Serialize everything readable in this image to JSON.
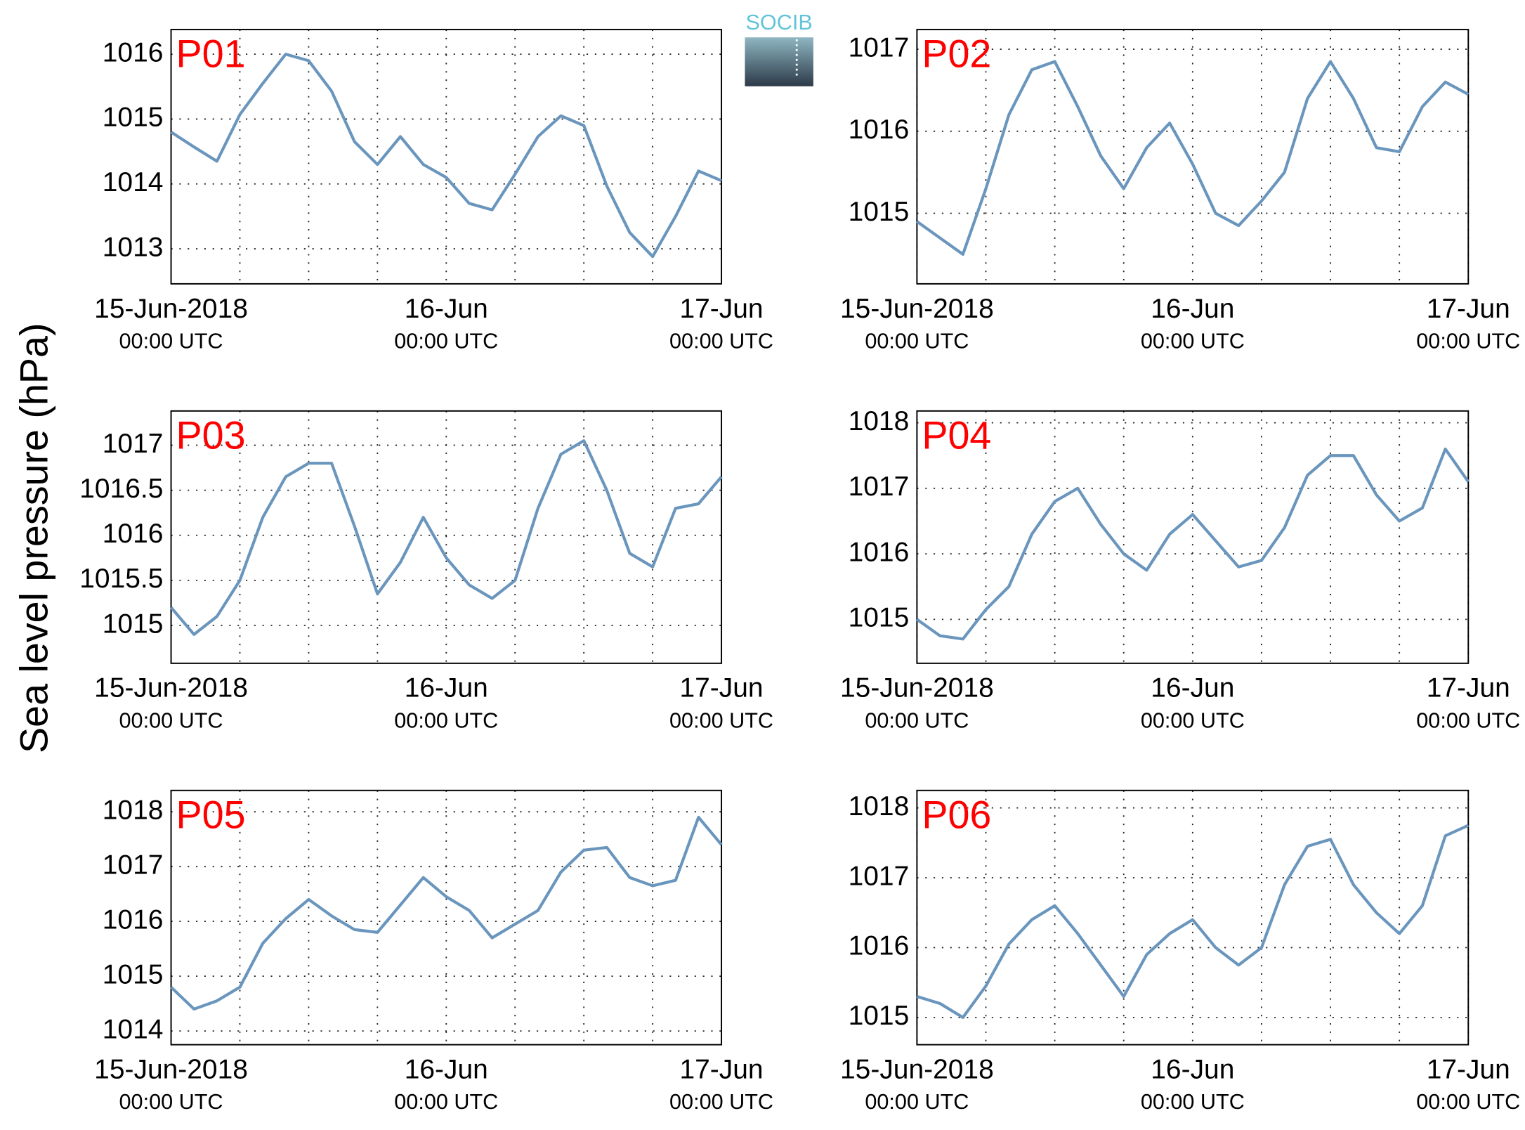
{
  "ylabel": "Sea level pressure (hPa)",
  "logo": "SOCIB",
  "chart_data": [
    {
      "type": "line",
      "label": "P01",
      "color": "#6a96bd",
      "label_color": "#ff0000",
      "grid": true,
      "x": [
        0,
        2,
        4,
        6,
        8,
        10,
        12,
        14,
        16,
        18,
        20,
        22,
        24,
        26,
        28,
        30,
        32,
        34,
        36,
        38,
        40,
        42,
        44,
        46,
        48
      ],
      "values": [
        1014.8,
        1014.57,
        1014.35,
        1015.07,
        1015.55,
        1016.0,
        1015.9,
        1015.43,
        1014.65,
        1014.3,
        1014.73,
        1014.3,
        1014.1,
        1013.7,
        1013.6,
        1014.15,
        1014.73,
        1015.05,
        1014.9,
        1013.97,
        1013.25,
        1012.88,
        1013.5,
        1014.2,
        1014.05
      ],
      "xlim": [
        0,
        48
      ],
      "xticks": [
        {
          "value": 0,
          "label": [
            "15-Jun-2018",
            "00:00 UTC"
          ]
        },
        6,
        12,
        18,
        {
          "value": 24,
          "label": [
            "16-Jun",
            "00:00 UTC"
          ]
        },
        30,
        36,
        42,
        {
          "value": 48,
          "label": [
            "17-Jun",
            "00:00 UTC"
          ]
        }
      ],
      "ylim": [
        1012.46,
        1016.38
      ],
      "yticks": [
        1013,
        1014,
        1015,
        1016
      ]
    },
    {
      "type": "line",
      "label": "P02",
      "color": "#6a96bd",
      "label_color": "#ff0000",
      "grid": true,
      "x": [
        0,
        2,
        4,
        6,
        8,
        10,
        12,
        14,
        16,
        18,
        20,
        22,
        24,
        26,
        28,
        30,
        32,
        34,
        36,
        38,
        40,
        42,
        44,
        46,
        48
      ],
      "values": [
        1014.9,
        1014.7,
        1014.5,
        1015.3,
        1016.2,
        1016.75,
        1016.85,
        1016.3,
        1015.7,
        1015.3,
        1015.8,
        1016.1,
        1015.6,
        1015.0,
        1014.85,
        1015.15,
        1015.5,
        1016.4,
        1016.85,
        1016.4,
        1015.8,
        1015.75,
        1016.3,
        1016.6,
        1016.45
      ],
      "xlim": [
        0,
        48
      ],
      "xticks": [
        {
          "value": 0,
          "label": [
            "15-Jun-2018",
            "00:00 UTC"
          ]
        },
        6,
        12,
        18,
        {
          "value": 24,
          "label": [
            "16-Jun",
            "00:00 UTC"
          ]
        },
        30,
        36,
        42,
        {
          "value": 48,
          "label": [
            "17-Jun",
            "00:00 UTC"
          ]
        }
      ],
      "ylim": [
        1014.14,
        1017.24
      ],
      "yticks": [
        1015,
        1016,
        1017
      ]
    },
    {
      "type": "line",
      "label": "P03",
      "color": "#6a96bd",
      "label_color": "#ff0000",
      "grid": true,
      "x": [
        0,
        2,
        4,
        6,
        8,
        10,
        12,
        14,
        16,
        18,
        20,
        22,
        24,
        26,
        28,
        30,
        32,
        34,
        36,
        38,
        40,
        42,
        44,
        46,
        48
      ],
      "values": [
        1015.2,
        1014.9,
        1015.1,
        1015.5,
        1016.2,
        1016.65,
        1016.8,
        1016.8,
        1016.1,
        1015.35,
        1015.7,
        1016.2,
        1015.75,
        1015.45,
        1015.3,
        1015.5,
        1016.3,
        1016.9,
        1017.05,
        1016.5,
        1015.8,
        1015.65,
        1016.3,
        1016.35,
        1016.65
      ],
      "xlim": [
        0,
        48
      ],
      "xticks": [
        {
          "value": 0,
          "label": [
            "15-Jun-2018",
            "00:00 UTC"
          ]
        },
        6,
        12,
        18,
        {
          "value": 24,
          "label": [
            "16-Jun",
            "00:00 UTC"
          ]
        },
        30,
        36,
        42,
        {
          "value": 48,
          "label": [
            "17-Jun",
            "00:00 UTC"
          ]
        }
      ],
      "ylim": [
        1014.58,
        1017.38
      ],
      "yticks": [
        1015,
        1015.5,
        1016,
        1016.5,
        1017
      ]
    },
    {
      "type": "line",
      "label": "P04",
      "color": "#6a96bd",
      "label_color": "#ff0000",
      "grid": true,
      "x": [
        0,
        2,
        4,
        6,
        8,
        10,
        12,
        14,
        16,
        18,
        20,
        22,
        24,
        26,
        28,
        30,
        32,
        34,
        36,
        38,
        40,
        42,
        44,
        46,
        48
      ],
      "values": [
        1015.0,
        1014.75,
        1014.7,
        1015.15,
        1015.5,
        1016.3,
        1016.8,
        1017.0,
        1016.45,
        1016.0,
        1015.75,
        1016.3,
        1016.6,
        1016.2,
        1015.8,
        1015.9,
        1016.4,
        1017.2,
        1017.5,
        1017.5,
        1016.9,
        1016.5,
        1016.7,
        1017.6,
        1017.1
      ],
      "xlim": [
        0,
        48
      ],
      "xticks": [
        {
          "value": 0,
          "label": [
            "15-Jun-2018",
            "00:00 UTC"
          ]
        },
        6,
        12,
        18,
        {
          "value": 24,
          "label": [
            "16-Jun",
            "00:00 UTC"
          ]
        },
        30,
        36,
        42,
        {
          "value": 48,
          "label": [
            "17-Jun",
            "00:00 UTC"
          ]
        }
      ],
      "ylim": [
        1014.33,
        1018.18
      ],
      "yticks": [
        1015,
        1016,
        1017,
        1018
      ]
    },
    {
      "type": "line",
      "label": "P05",
      "color": "#6a96bd",
      "label_color": "#ff0000",
      "grid": true,
      "x": [
        0,
        2,
        4,
        6,
        8,
        10,
        12,
        14,
        16,
        18,
        20,
        22,
        24,
        26,
        28,
        30,
        32,
        34,
        36,
        38,
        40,
        42,
        44,
        46,
        48
      ],
      "values": [
        1014.8,
        1014.4,
        1014.55,
        1014.8,
        1015.6,
        1016.05,
        1016.4,
        1016.1,
        1015.85,
        1015.8,
        1016.3,
        1016.8,
        1016.45,
        1016.2,
        1015.7,
        1015.95,
        1016.2,
        1016.9,
        1017.3,
        1017.35,
        1016.8,
        1016.65,
        1016.75,
        1017.9,
        1017.4
      ],
      "xlim": [
        0,
        48
      ],
      "xticks": [
        {
          "value": 0,
          "label": [
            "15-Jun-2018",
            "00:00 UTC"
          ]
        },
        6,
        12,
        18,
        {
          "value": 24,
          "label": [
            "16-Jun",
            "00:00 UTC"
          ]
        },
        30,
        36,
        42,
        {
          "value": 48,
          "label": [
            "17-Jun",
            "00:00 UTC"
          ]
        }
      ],
      "ylim": [
        1013.75,
        1018.39
      ],
      "yticks": [
        1014,
        1015,
        1016,
        1017,
        1018
      ]
    },
    {
      "type": "line",
      "label": "P06",
      "color": "#6a96bd",
      "label_color": "#ff0000",
      "grid": true,
      "x": [
        0,
        2,
        4,
        6,
        8,
        10,
        12,
        14,
        16,
        18,
        20,
        22,
        24,
        26,
        28,
        30,
        32,
        34,
        36,
        38,
        40,
        42,
        44,
        46,
        48
      ],
      "values": [
        1015.3,
        1015.2,
        1015.0,
        1015.45,
        1016.05,
        1016.4,
        1016.6,
        1016.2,
        1015.75,
        1015.3,
        1015.9,
        1016.2,
        1016.4,
        1016.0,
        1015.75,
        1016.0,
        1016.9,
        1017.45,
        1017.55,
        1016.9,
        1016.5,
        1016.2,
        1016.6,
        1017.6,
        1017.75
      ],
      "xlim": [
        0,
        48
      ],
      "xticks": [
        {
          "value": 0,
          "label": [
            "15-Jun-2018",
            "00:00 UTC"
          ]
        },
        6,
        12,
        18,
        {
          "value": 24,
          "label": [
            "16-Jun",
            "00:00 UTC"
          ]
        },
        30,
        36,
        42,
        {
          "value": 48,
          "label": [
            "17-Jun",
            "00:00 UTC"
          ]
        }
      ],
      "ylim": [
        1014.61,
        1018.25
      ],
      "yticks": [
        1015,
        1016,
        1017,
        1018
      ]
    }
  ]
}
